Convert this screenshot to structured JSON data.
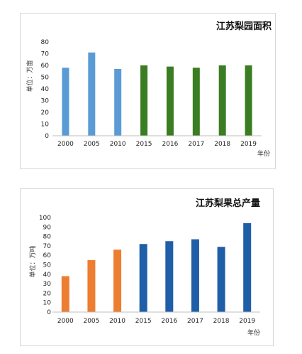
{
  "chart_data": [
    {
      "type": "bar",
      "title": "江苏梨园面积",
      "xlabel": "年份",
      "ylabel": "单位：万亩",
      "categories": [
        "2000",
        "2005",
        "2010",
        "2015",
        "2016",
        "2017",
        "2018",
        "2019"
      ],
      "values": [
        58,
        71,
        57,
        60,
        59,
        58,
        60,
        60
      ],
      "bar_colors": [
        "#5b9bd5",
        "#5b9bd5",
        "#5b9bd5",
        "#3a7d22",
        "#3a7d22",
        "#3a7d22",
        "#3a7d22",
        "#3a7d22"
      ],
      "ylim": [
        0,
        80
      ],
      "yticks": [
        0,
        10,
        20,
        30,
        40,
        50,
        60,
        70,
        80
      ],
      "grid": false,
      "legend": "none"
    },
    {
      "type": "bar",
      "title": "江苏梨果总产量",
      "xlabel": "年份",
      "ylabel": "单位：万吨",
      "categories": [
        "2000",
        "2005",
        "2010",
        "2015",
        "2016",
        "2017",
        "2018",
        "2019"
      ],
      "values": [
        38,
        55,
        66,
        72,
        75,
        77,
        69,
        94
      ],
      "bar_colors": [
        "#ed7d31",
        "#ed7d31",
        "#ed7d31",
        "#1f5fa8",
        "#1f5fa8",
        "#1f5fa8",
        "#1f5fa8",
        "#1f5fa8"
      ],
      "ylim": [
        0,
        100
      ],
      "yticks": [
        0,
        10,
        20,
        30,
        40,
        50,
        60,
        70,
        80,
        90,
        100
      ],
      "grid": false,
      "legend": "none"
    }
  ]
}
